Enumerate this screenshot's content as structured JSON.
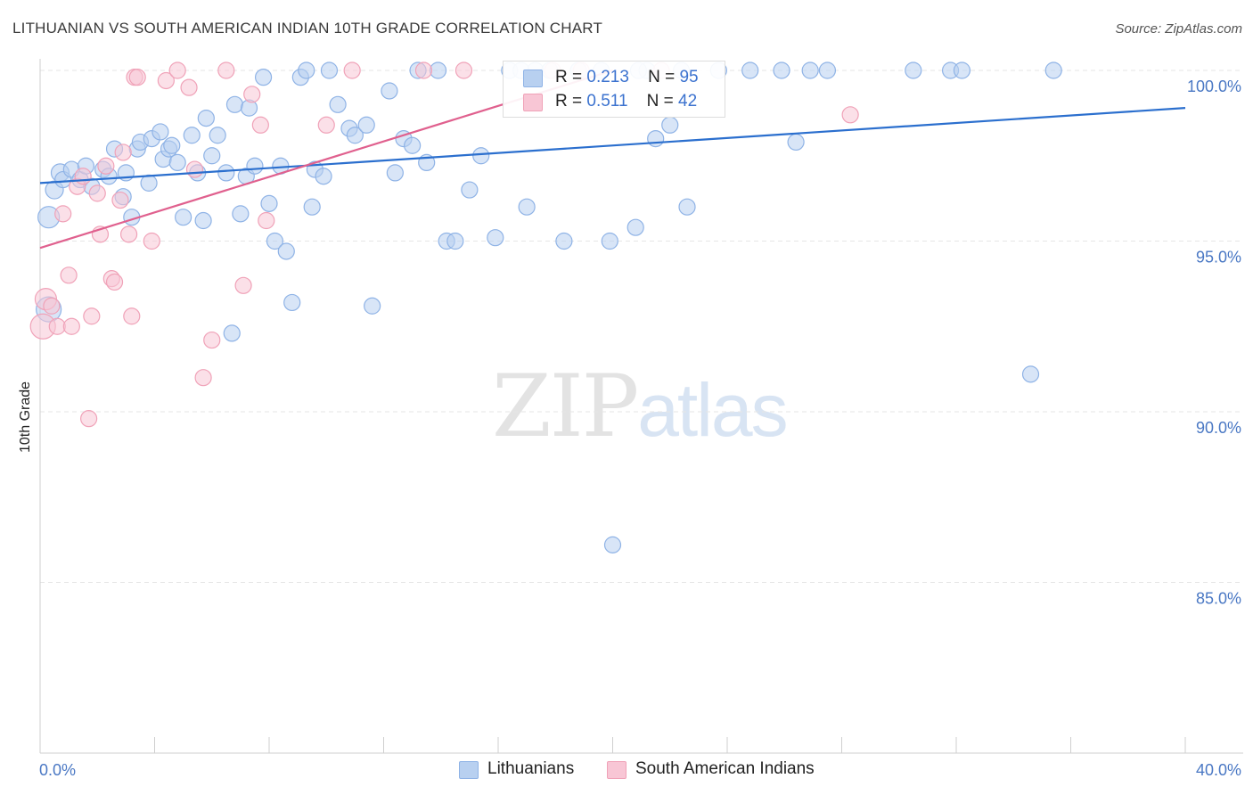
{
  "title": "LITHUANIAN VS SOUTH AMERICAN INDIAN 10TH GRADE CORRELATION CHART",
  "source": "Source: ZipAtlas.com",
  "watermark": {
    "zip": "ZIP",
    "atlas": "atlas"
  },
  "legend": {
    "r_label": "R =",
    "n_label": "N =",
    "series": [
      {
        "r": "0.213",
        "n": "95"
      },
      {
        "r": "0.511",
        "n": "42"
      }
    ]
  },
  "bottom_legend": [
    "Lithuanians",
    "South American Indians"
  ],
  "colors": {
    "blue_fill": "#b8d0f0",
    "blue_stroke": "#8fb3e6",
    "blue_line": "#2b6fce",
    "pink_fill": "#f8c6d5",
    "pink_stroke": "#f0a2b8",
    "pink_line": "#e0608e",
    "tick_text": "#4a78c4",
    "grid": "#e6e6e6"
  },
  "chart_data": {
    "type": "scatter",
    "title": "LITHUANIAN VS SOUTH AMERICAN INDIAN 10TH GRADE CORRELATION CHART",
    "xlabel": "",
    "ylabel": "10th Grade",
    "xlim": [
      0,
      40
    ],
    "ylim": [
      80.5,
      100.8
    ],
    "x_tick_labels": [
      "0.0%",
      "40.0%"
    ],
    "y_ticks": [
      85,
      90,
      95,
      100
    ],
    "y_tick_labels": [
      "85.0%",
      "90.0%",
      "95.0%",
      "100.0%"
    ],
    "grid": "horizontal dashed",
    "legend_position": "top-center",
    "series": [
      {
        "name": "Lithuanians",
        "color": "#b8d0f0",
        "trend": {
          "x": [
            0,
            40
          ],
          "y": [
            96.7,
            98.9
          ]
        },
        "points": [
          [
            0.3,
            93.0,
            14
          ],
          [
            0.3,
            95.7,
            12
          ],
          [
            0.5,
            96.5,
            10
          ],
          [
            0.7,
            97.0,
            10
          ],
          [
            0.8,
            96.8,
            9
          ],
          [
            1.1,
            97.1,
            9
          ],
          [
            1.4,
            96.8,
            9
          ],
          [
            1.6,
            97.2,
            9
          ],
          [
            1.8,
            96.6,
            9
          ],
          [
            2.2,
            97.1,
            9
          ],
          [
            2.4,
            96.9,
            9
          ],
          [
            2.6,
            97.7,
            9
          ],
          [
            2.9,
            96.3,
            9
          ],
          [
            3.0,
            97.0,
            9
          ],
          [
            3.2,
            95.7,
            9
          ],
          [
            3.4,
            97.7,
            9
          ],
          [
            3.5,
            97.9,
            9
          ],
          [
            3.8,
            96.7,
            9
          ],
          [
            3.9,
            98.0,
            9
          ],
          [
            4.2,
            98.2,
            9
          ],
          [
            4.3,
            97.4,
            9
          ],
          [
            4.5,
            97.7,
            9
          ],
          [
            4.6,
            97.8,
            9
          ],
          [
            4.8,
            97.3,
            9
          ],
          [
            5.0,
            95.7,
            9
          ],
          [
            5.3,
            98.1,
            9
          ],
          [
            5.5,
            97.0,
            9
          ],
          [
            5.7,
            95.6,
            9
          ],
          [
            5.8,
            98.6,
            9
          ],
          [
            6.0,
            97.5,
            9
          ],
          [
            6.2,
            98.1,
            9
          ],
          [
            6.5,
            97.0,
            9
          ],
          [
            6.7,
            92.3,
            9
          ],
          [
            6.8,
            99.0,
            9
          ],
          [
            7.0,
            95.8,
            9
          ],
          [
            7.2,
            96.9,
            9
          ],
          [
            7.3,
            98.9,
            9
          ],
          [
            7.5,
            97.2,
            9
          ],
          [
            7.8,
            99.8,
            9
          ],
          [
            8.0,
            96.1,
            9
          ],
          [
            8.2,
            95.0,
            9
          ],
          [
            8.4,
            97.2,
            9
          ],
          [
            8.6,
            94.7,
            9
          ],
          [
            8.8,
            93.2,
            9
          ],
          [
            9.1,
            99.8,
            9
          ],
          [
            9.3,
            100.0,
            9
          ],
          [
            9.5,
            96.0,
            9
          ],
          [
            9.6,
            97.1,
            9
          ],
          [
            9.9,
            96.9,
            9
          ],
          [
            10.1,
            100.0,
            9
          ],
          [
            10.4,
            99.0,
            9
          ],
          [
            10.8,
            98.3,
            9
          ],
          [
            11.0,
            98.1,
            9
          ],
          [
            11.4,
            98.4,
            9
          ],
          [
            11.6,
            93.1,
            9
          ],
          [
            12.2,
            99.4,
            9
          ],
          [
            12.4,
            97.0,
            9
          ],
          [
            12.7,
            98.0,
            9
          ],
          [
            13.0,
            97.8,
            9
          ],
          [
            13.2,
            100.0,
            9
          ],
          [
            13.5,
            97.3,
            9
          ],
          [
            13.9,
            100.0,
            9
          ],
          [
            14.2,
            95.0,
            9
          ],
          [
            14.5,
            95.0,
            9
          ],
          [
            15.0,
            96.5,
            9
          ],
          [
            15.4,
            97.5,
            9
          ],
          [
            15.9,
            95.1,
            9
          ],
          [
            16.4,
            100.0,
            9
          ],
          [
            17.0,
            96.0,
            9
          ],
          [
            17.3,
            100.0,
            9
          ],
          [
            17.8,
            100.0,
            9
          ],
          [
            18.3,
            95.0,
            9
          ],
          [
            18.8,
            100.0,
            9
          ],
          [
            19.6,
            100.0,
            9
          ],
          [
            19.9,
            95.0,
            9
          ],
          [
            20.0,
            86.1,
            9
          ],
          [
            20.8,
            95.4,
            9
          ],
          [
            21.2,
            100.0,
            9
          ],
          [
            21.5,
            98.0,
            9
          ],
          [
            22.0,
            98.4,
            9
          ],
          [
            22.4,
            100.0,
            9
          ],
          [
            22.6,
            96.0,
            9
          ],
          [
            23.7,
            100.0,
            9
          ],
          [
            24.8,
            100.0,
            9
          ],
          [
            25.9,
            100.0,
            9
          ],
          [
            26.4,
            97.9,
            9
          ],
          [
            26.9,
            100.0,
            9
          ],
          [
            27.5,
            100.0,
            9
          ],
          [
            30.5,
            100.0,
            9
          ],
          [
            31.8,
            100.0,
            9
          ],
          [
            32.2,
            100.0,
            9
          ],
          [
            34.6,
            91.1,
            9
          ],
          [
            35.4,
            100.0,
            9
          ],
          [
            20.9,
            100.0,
            9
          ],
          [
            16.8,
            100.0,
            9
          ]
        ]
      },
      {
        "name": "South American Indians",
        "color": "#f8c6d5",
        "trend": {
          "x": [
            0,
            20.0
          ],
          "y": [
            94.8,
            100.0
          ]
        },
        "points": [
          [
            0.1,
            92.5,
            14
          ],
          [
            0.2,
            93.3,
            12
          ],
          [
            0.4,
            93.1,
            9
          ],
          [
            0.6,
            92.5,
            9
          ],
          [
            0.8,
            95.8,
            9
          ],
          [
            1.0,
            94.0,
            9
          ],
          [
            1.1,
            92.5,
            9
          ],
          [
            1.3,
            96.6,
            9
          ],
          [
            1.5,
            96.9,
            9
          ],
          [
            1.7,
            89.8,
            9
          ],
          [
            1.8,
            92.8,
            9
          ],
          [
            2.0,
            96.4,
            9
          ],
          [
            2.1,
            95.2,
            9
          ],
          [
            2.3,
            97.2,
            9
          ],
          [
            2.5,
            93.9,
            9
          ],
          [
            2.6,
            93.8,
            9
          ],
          [
            2.8,
            96.2,
            9
          ],
          [
            2.9,
            97.6,
            9
          ],
          [
            3.1,
            95.2,
            9
          ],
          [
            3.2,
            92.8,
            9
          ],
          [
            3.3,
            99.8,
            9
          ],
          [
            3.4,
            99.8,
            9
          ],
          [
            3.9,
            95.0,
            9
          ],
          [
            4.4,
            99.7,
            9
          ],
          [
            4.8,
            100.0,
            9
          ],
          [
            5.2,
            99.5,
            9
          ],
          [
            5.4,
            97.1,
            9
          ],
          [
            5.7,
            91.0,
            9
          ],
          [
            6.0,
            92.1,
            9
          ],
          [
            6.5,
            100.0,
            9
          ],
          [
            7.1,
            93.7,
            9
          ],
          [
            7.4,
            99.3,
            9
          ],
          [
            7.7,
            98.4,
            9
          ],
          [
            7.9,
            95.6,
            9
          ],
          [
            10.0,
            98.4,
            9
          ],
          [
            10.9,
            100.0,
            9
          ],
          [
            13.4,
            100.0,
            9
          ],
          [
            14.8,
            100.0,
            9
          ],
          [
            17.9,
            100.0,
            9
          ],
          [
            18.9,
            100.0,
            9
          ],
          [
            28.3,
            98.7,
            9
          ],
          [
            21.7,
            100.0,
            9
          ]
        ]
      }
    ]
  }
}
